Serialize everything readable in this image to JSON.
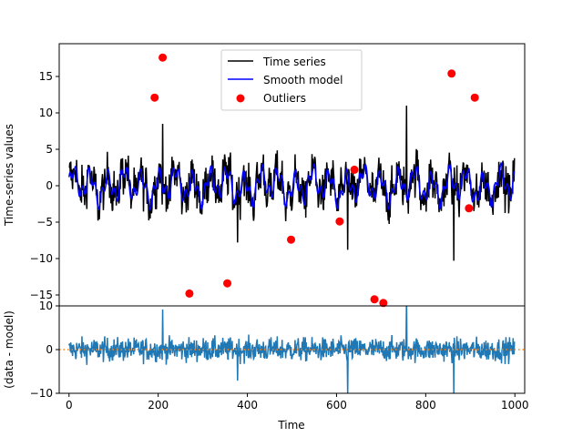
{
  "chart_data": [
    {
      "type": "line",
      "panel": "top",
      "ylabel": "Time-series values",
      "xlim": [
        -22,
        1022
      ],
      "ylim": [
        -16.5,
        19.5
      ],
      "yticks": [
        -15,
        -10,
        -5,
        0,
        5,
        10,
        15
      ],
      "grid": false,
      "legend": {
        "position": "top-center",
        "entries": [
          "Time series",
          "Smooth model",
          "Outliers"
        ]
      },
      "series": [
        {
          "name": "Time series",
          "style": "line",
          "color": "#000000",
          "x_range": [
            0,
            1000
          ],
          "points": 1000,
          "typical_range": [
            -6,
            6
          ],
          "extreme_values": [
            {
              "x": 210,
              "y": 8.5
            },
            {
              "x": 378,
              "y": -7.8
            },
            {
              "x": 625,
              "y": -8.8
            },
            {
              "x": 757,
              "y": 11
            },
            {
              "x": 863,
              "y": -10.3
            }
          ]
        },
        {
          "name": "Smooth model",
          "style": "line",
          "color": "#0000ff",
          "x_range": [
            0,
            1000
          ],
          "points": 1000,
          "typical_range": [
            -3,
            3
          ]
        },
        {
          "name": "Outliers",
          "style": "scatter",
          "color": "#ff0000",
          "points_xy": [
            [
              192,
              12.1
            ],
            [
              210,
              17.6
            ],
            [
              270,
              -14.8
            ],
            [
              355,
              -13.4
            ],
            [
              498,
              -7.4
            ],
            [
              607,
              -4.9
            ],
            [
              640,
              2.2
            ],
            [
              685,
              -15.6
            ],
            [
              705,
              -16.1
            ],
            [
              858,
              15.4
            ],
            [
              897,
              -3.1
            ],
            [
              910,
              12.1
            ]
          ]
        }
      ]
    },
    {
      "type": "line",
      "panel": "bottom",
      "xlabel": "Time",
      "ylabel": "(data - model)",
      "xlim": [
        -22,
        1022
      ],
      "ylim": [
        -10,
        10
      ],
      "yticks": [
        -10,
        0,
        10
      ],
      "xticks": [
        0,
        200,
        400,
        600,
        800,
        1000
      ],
      "grid": false,
      "series": [
        {
          "name": "",
          "style": "line",
          "color": "#1f77b4",
          "x_range": [
            0,
            1000
          ],
          "points": 1000,
          "typical_range": [
            -5,
            5
          ]
        },
        {
          "name": "",
          "style": "dotted",
          "color": "#ff7f0e",
          "constant": 0
        }
      ]
    }
  ]
}
